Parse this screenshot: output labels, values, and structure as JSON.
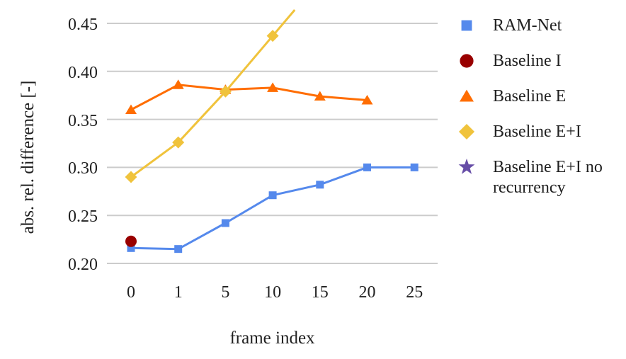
{
  "chart_data": {
    "type": "line",
    "title": "",
    "xlabel": "frame index",
    "ylabel": "abs. rel. difference [-]",
    "x_categories": [
      "0",
      "1",
      "5",
      "10",
      "15",
      "20",
      "25"
    ],
    "y_ticks": [
      0.2,
      0.25,
      0.3,
      0.35,
      0.4,
      0.45
    ],
    "y_tick_labels": [
      "0.20",
      "0.25",
      "0.30",
      "0.35",
      "0.40",
      "0.45"
    ],
    "ylim": [
      0.2,
      0.45
    ],
    "grid": "horizontal",
    "grid_color": "#cccccc",
    "text_color": "#212121",
    "background_color": "#ffffff",
    "legend_position": "right",
    "series": [
      {
        "name": "RAM-Net",
        "marker": "square",
        "color": "#5589ec",
        "values": [
          0.216,
          0.215,
          0.242,
          0.271,
          0.282,
          0.3,
          0.3
        ],
        "continues_offscale": false
      },
      {
        "name": "Baseline I",
        "marker": "circle",
        "color": "#990000",
        "values": [
          0.223,
          null,
          null,
          null,
          null,
          null,
          null
        ],
        "continues_offscale": false
      },
      {
        "name": "Baseline E",
        "marker": "triangle",
        "color": "#ff6d01",
        "values": [
          0.36,
          0.386,
          0.381,
          0.383,
          0.374,
          0.37,
          null
        ],
        "continues_offscale": false
      },
      {
        "name": "Baseline E+I",
        "marker": "diamond",
        "color": "#f0c33c",
        "values": [
          0.29,
          0.326,
          0.379,
          0.437,
          null,
          null,
          null
        ],
        "continues_offscale": true
      },
      {
        "name": "Baseline E+I no recurrency",
        "marker": "star",
        "color": "#674ea7",
        "values": [
          null,
          null,
          null,
          null,
          null,
          null,
          null
        ],
        "continues_offscale": false
      }
    ]
  }
}
